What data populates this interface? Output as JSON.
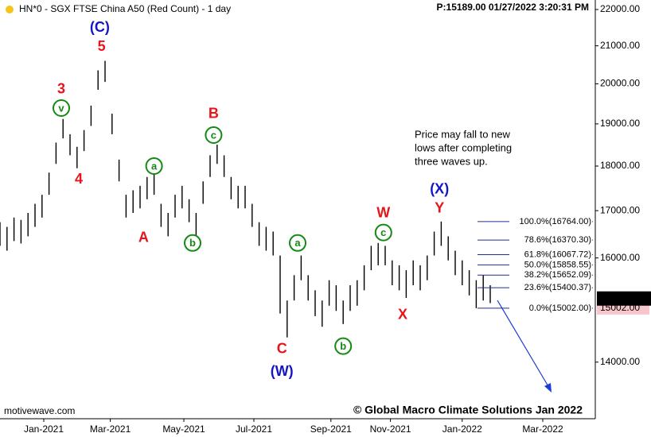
{
  "chart_data": {
    "type": "high_low",
    "title": "HN*0 - SGX FTSE China A50 (Red Count) - 1 day",
    "status": "P:15189.00  01/27/2022 3:20:31 PM",
    "source": "motivewave.com",
    "copyright": "© Global Macro Climate Solutions Jan 2022",
    "log_scale": true,
    "grid": false,
    "color": "#000000",
    "xlim": [
      0,
      340
    ],
    "xticks": [
      {
        "value": 25,
        "label": "Jan-2021"
      },
      {
        "value": 63,
        "label": "Mar-2021"
      },
      {
        "value": 105,
        "label": "May-2021"
      },
      {
        "value": 145,
        "label": "Jul-2021"
      },
      {
        "value": 189,
        "label": "Sep-2021"
      },
      {
        "value": 223,
        "label": "Nov-2021"
      },
      {
        "value": 264,
        "label": "Jan-2022"
      },
      {
        "value": 310,
        "label": "Mar-2022"
      }
    ],
    "ylim": [
      13020,
      22270
    ],
    "yticks": [
      {
        "value": 14000,
        "label": "14000.00"
      },
      {
        "value": 16000,
        "label": "16000.00"
      },
      {
        "value": 17000,
        "label": "17000.00"
      },
      {
        "value": 18000,
        "label": "18000.00"
      },
      {
        "value": 19000,
        "label": "19000.00"
      },
      {
        "value": 20000,
        "label": "20000.00"
      },
      {
        "value": 21000,
        "label": "21000.00"
      },
      {
        "value": 22000,
        "label": "22000.00"
      }
    ],
    "bars": {
      "x": [
        0,
        4,
        8,
        12,
        16,
        20,
        24,
        28,
        32,
        36,
        40,
        44,
        48,
        52,
        56,
        60,
        64,
        68,
        72,
        76,
        80,
        84,
        88,
        92,
        96,
        100,
        104,
        108,
        112,
        116,
        120,
        124,
        128,
        132,
        136,
        140,
        144,
        148,
        152,
        156,
        160,
        164,
        168,
        172,
        176,
        180,
        184,
        188,
        192,
        196,
        200,
        204,
        208,
        212,
        216,
        220,
        224,
        228,
        232,
        236,
        240,
        244,
        248,
        252,
        256,
        260,
        264,
        268,
        272,
        276,
        280
      ],
      "high": [
        16750,
        16650,
        16850,
        16800,
        16950,
        17150,
        17350,
        17850,
        18550,
        19120,
        18750,
        18450,
        18850,
        19450,
        20350,
        20600,
        19250,
        18150,
        17350,
        17450,
        17550,
        17750,
        17850,
        17150,
        16950,
        17350,
        17550,
        17250,
        16950,
        17650,
        18250,
        18500,
        18250,
        17750,
        17550,
        17550,
        17150,
        16750,
        16650,
        16550,
        16050,
        15150,
        15650,
        16050,
        15650,
        15350,
        15150,
        15550,
        15450,
        15150,
        15450,
        15550,
        15850,
        16250,
        16310,
        16250,
        15950,
        15850,
        15750,
        15950,
        15850,
        16050,
        16550,
        16764,
        16450,
        16150,
        15950,
        15750,
        15550,
        15650,
        15450
      ],
      "low": [
        16250,
        16150,
        16350,
        16300,
        16450,
        16650,
        16850,
        17350,
        18050,
        18650,
        18250,
        17950,
        18350,
        18950,
        19850,
        20050,
        18750,
        17650,
        16850,
        16950,
        17050,
        17250,
        17350,
        16650,
        16450,
        16850,
        17050,
        16750,
        16450,
        17150,
        17750,
        18050,
        17750,
        17250,
        17050,
        17050,
        16650,
        16250,
        16150,
        16050,
        14900,
        14450,
        15150,
        15550,
        15150,
        14850,
        14650,
        15050,
        14950,
        14700,
        14950,
        15050,
        15350,
        15750,
        15850,
        15850,
        15450,
        15350,
        15200,
        15450,
        15350,
        15550,
        16050,
        16250,
        15950,
        15650,
        15450,
        15250,
        15002,
        15150,
        15100
      ]
    },
    "last_price": {
      "value": 15189,
      "label": "15189.00"
    },
    "low_price": {
      "value": 15002,
      "label": "15002.00"
    },
    "fib_levels": [
      {
        "value": 16764,
        "label": "100.0%(16764.00)"
      },
      {
        "value": 16370.3,
        "label": "78.6%(16370.30)"
      },
      {
        "value": 16067.72,
        "label": "61.8%(16067.72)"
      },
      {
        "value": 15858.55,
        "label": "50.0%(15858.55)"
      },
      {
        "value": 15652.09,
        "label": "38.2%(15652.09)"
      },
      {
        "value": 15400.37,
        "label": "23.6%(15400.37)"
      },
      {
        "value": 15002,
        "label": "0.0%(15002.00)"
      }
    ],
    "note": [
      "Price may fall to new",
      "lows after completing",
      "three waves up."
    ],
    "annotations": [
      {
        "text": "(C)",
        "x": 57,
        "y": 21490,
        "color": "#1515c8",
        "circled": false
      },
      {
        "text": "5",
        "x": 58,
        "y": 20970,
        "color": "#e8141b",
        "circled": false
      },
      {
        "text": "3",
        "x": 35,
        "y": 19850,
        "color": "#e8141b",
        "circled": false
      },
      {
        "text": "v",
        "x": 35,
        "y": 19390,
        "color": "#138a13",
        "circled": true
      },
      {
        "text": "4",
        "x": 45,
        "y": 17690,
        "color": "#e8141b",
        "circled": false
      },
      {
        "text": "a",
        "x": 88,
        "y": 18000,
        "color": "#138a13",
        "circled": true
      },
      {
        "text": "A",
        "x": 82,
        "y": 16410,
        "color": "#e8141b",
        "circled": false
      },
      {
        "text": "b",
        "x": 110,
        "y": 16310,
        "color": "#138a13",
        "circled": true
      },
      {
        "text": "B",
        "x": 122,
        "y": 19240,
        "color": "#e8141b",
        "circled": false
      },
      {
        "text": "c",
        "x": 122,
        "y": 18730,
        "color": "#138a13",
        "circled": true
      },
      {
        "text": "a",
        "x": 170,
        "y": 16310,
        "color": "#138a13",
        "circled": true
      },
      {
        "text": "C",
        "x": 161,
        "y": 14230,
        "color": "#e8141b",
        "circled": false
      },
      {
        "text": "(W)",
        "x": 161,
        "y": 13820,
        "color": "#1515c8",
        "circled": false
      },
      {
        "text": "b",
        "x": 196,
        "y": 14290,
        "color": "#138a13",
        "circled": true
      },
      {
        "text": "W",
        "x": 219,
        "y": 16940,
        "color": "#e8141b",
        "circled": false
      },
      {
        "text": "c",
        "x": 219,
        "y": 16530,
        "color": "#138a13",
        "circled": true
      },
      {
        "text": "X",
        "x": 230,
        "y": 14870,
        "color": "#e8141b",
        "circled": false
      },
      {
        "text": "(X)",
        "x": 251,
        "y": 17460,
        "color": "#1515c8",
        "circled": false
      },
      {
        "text": "Y",
        "x": 251,
        "y": 17040,
        "color": "#e8141b",
        "circled": false
      }
    ]
  }
}
